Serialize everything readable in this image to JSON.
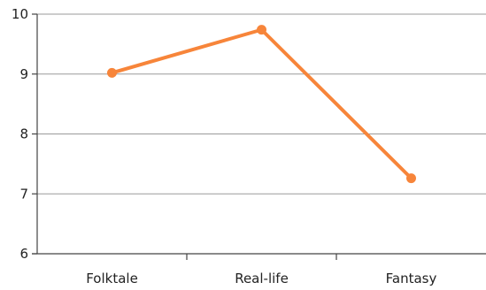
{
  "chart_data": {
    "type": "line",
    "title": "",
    "xlabel": "",
    "ylabel": "",
    "categories": [
      "Folktale",
      "Real-life",
      "Fantasy"
    ],
    "series": [
      {
        "values": [
          9.02,
          9.74,
          7.26
        ],
        "color": "#F7853A"
      }
    ],
    "ylim": [
      6,
      10
    ],
    "yticks": [
      "6",
      "7",
      "8",
      "9",
      "10"
    ],
    "grid": true,
    "legend": "none"
  }
}
